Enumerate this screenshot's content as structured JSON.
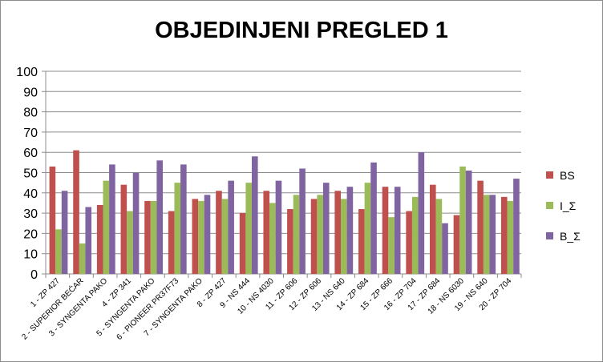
{
  "chart_data": {
    "type": "bar",
    "title": "OBJEDINJENI PREGLED 1",
    "xlabel": "",
    "ylabel": "",
    "ylim": [
      0,
      100
    ],
    "yticks": [
      0,
      10,
      20,
      30,
      40,
      50,
      60,
      70,
      80,
      90,
      100
    ],
    "grid": true,
    "legend_position": "right",
    "categories": [
      "1 - ZP 427",
      "2 - SUPERIOR BEĆAR",
      "3 - SYNGENTA PAKO",
      "4 - ZP 341",
      "5 - SYNGENTA PAKO",
      "6 - PIONEER PR37F73",
      "7 - SYNGENTA PAKO",
      "8 - ZP 427",
      "9 - NS 444",
      "10 - NS 4030",
      "11 - ZP 606",
      "12 - ZP 606",
      "13 - NS 640",
      "14 - ZP 684",
      "15 - ZP 666",
      "16 - ZP 704",
      "17 - ZP 684",
      "18 - NS 6030",
      "19 - NS 640",
      "20 - ZP 704"
    ],
    "series": [
      {
        "name": "BS",
        "color": "#c0504d",
        "values": [
          53,
          61,
          34,
          44,
          36,
          31,
          37,
          41,
          30,
          41,
          32,
          37,
          41,
          32,
          43,
          31,
          44,
          29,
          46,
          38
        ]
      },
      {
        "name": "I_Σ",
        "color": "#9bbb59",
        "values": [
          22,
          15,
          46,
          31,
          36,
          45,
          36,
          37,
          45,
          35,
          39,
          39,
          37,
          45,
          28,
          38,
          37,
          53,
          39,
          36
        ]
      },
      {
        "name": "B_Σ",
        "color": "#8064a2",
        "values": [
          41,
          33,
          54,
          50,
          56,
          54,
          39,
          46,
          58,
          46,
          52,
          45,
          43,
          55,
          43,
          60,
          25,
          51,
          39,
          47
        ]
      }
    ]
  }
}
